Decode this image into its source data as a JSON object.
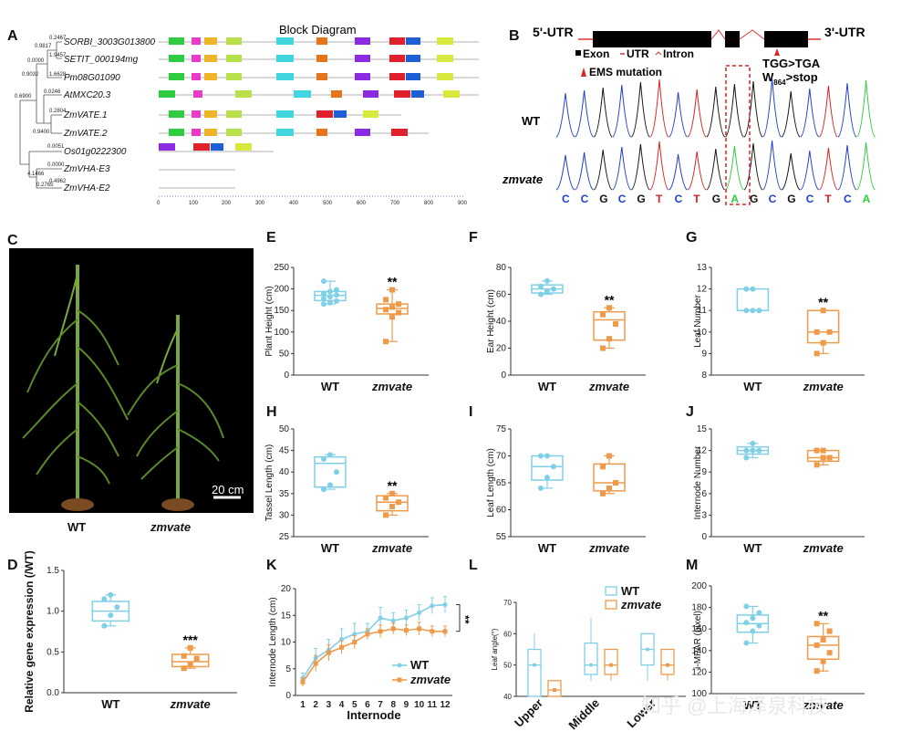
{
  "colors": {
    "wt": "#7fd0e6",
    "mut": "#ef9a4a",
    "dark": "#111111"
  },
  "panelA": {
    "letter": "A",
    "title": "Block Diagram",
    "genes": [
      "SORBI_3003G013800",
      "SETIT_000194mg",
      "Pm08G01090",
      "AtMXC20.3",
      "ZmVATE.1",
      "ZmVATE.2",
      "Os01g0222300",
      "ZmVHA-E3",
      "ZmVHA-E2"
    ],
    "branch_labels": [
      "0.2467",
      "0.9817",
      "0.0000",
      "1.9457",
      "1.6628",
      "0.9032",
      "0.6900",
      "0.0246",
      "0.2804",
      "0.9400",
      "0.0051",
      "0.0000",
      "4.1466",
      "0.2765",
      "0.4962"
    ],
    "scale": [
      "0",
      "100",
      "200",
      "300",
      "400",
      "500",
      "600",
      "700",
      "800",
      "900"
    ]
  },
  "panelB": {
    "letter": "B",
    "utr5": "5'-UTR",
    "utr3": "3'-UTR",
    "legend_exon": "Exon",
    "legend_utr": "UTR",
    "legend_intron": "Intron",
    "ems": "EMS mutation",
    "mut1": "TGG>TGA",
    "mut2_w": "W",
    "mut2_sub": "864",
    "mut2_rest": ">stop",
    "wt": "WT",
    "mutant": "zmvate",
    "bases": [
      "C",
      "C",
      "G",
      "C",
      "G",
      "T",
      "C",
      "T",
      "G",
      "A",
      "G",
      "C",
      "G",
      "C",
      "T",
      "C",
      "A"
    ]
  },
  "panelC": {
    "letter": "C",
    "scale": "20 cm",
    "wt": "WT",
    "mutant": "zmvate"
  },
  "panels": [
    {
      "letter": "E",
      "ylabel": "Plant Height (cm)",
      "ylim": [
        0,
        250
      ],
      "ticks": [
        0,
        50,
        100,
        150,
        200,
        250
      ],
      "sig": "**",
      "wt": {
        "min": 165,
        "q1": 173,
        "med": 185,
        "q3": 194,
        "max": 218,
        "pts": [
          165,
          168,
          172,
          178,
          182,
          186,
          190,
          194,
          198,
          218
        ]
      },
      "mut": {
        "min": 78,
        "q1": 142,
        "med": 155,
        "q3": 165,
        "max": 198,
        "pts": [
          78,
          135,
          145,
          152,
          158,
          165,
          175,
          198
        ]
      }
    },
    {
      "letter": "F",
      "ylabel": "Ear Height (cm)",
      "ylim": [
        0,
        80
      ],
      "ticks": [
        0,
        20,
        40,
        60,
        80
      ],
      "sig": "**",
      "wt": {
        "min": 60,
        "q1": 61,
        "med": 64,
        "q3": 67,
        "max": 70,
        "pts": [
          60,
          62,
          64,
          66,
          70
        ]
      },
      "mut": {
        "min": 20,
        "q1": 26,
        "med": 41,
        "q3": 47,
        "max": 50,
        "pts": [
          20,
          27,
          38,
          45,
          50
        ]
      }
    },
    {
      "letter": "G",
      "ylabel": "Leaf Number",
      "ylim": [
        8,
        13
      ],
      "ticks": [
        8,
        9,
        10,
        11,
        12,
        13
      ],
      "sig": "**",
      "wt": {
        "min": 11,
        "q1": 11,
        "med": 11,
        "q3": 12,
        "max": 12,
        "pts": [
          11,
          11,
          11,
          12,
          12
        ]
      },
      "mut": {
        "min": 9,
        "q1": 9.5,
        "med": 10,
        "q3": 11,
        "max": 11,
        "pts": [
          9,
          9.5,
          10,
          10,
          11
        ]
      }
    },
    {
      "letter": "H",
      "ylabel": "Tassel Length (cm)",
      "ylim": [
        25,
        50
      ],
      "ticks": [
        25,
        30,
        35,
        40,
        45,
        50
      ],
      "sig": "**",
      "wt": {
        "min": 36,
        "q1": 36.5,
        "med": 42,
        "q3": 43.5,
        "max": 44,
        "pts": [
          36,
          37,
          40,
          43,
          44
        ]
      },
      "mut": {
        "min": 30,
        "q1": 31,
        "med": 33,
        "q3": 34.5,
        "max": 35,
        "pts": [
          30,
          32,
          33,
          34,
          35
        ]
      }
    },
    {
      "letter": "I",
      "ylabel": "Leaf Length (cm)",
      "ylim": [
        55,
        75
      ],
      "ticks": [
        55,
        60,
        65,
        70,
        75
      ],
      "sig": "",
      "wt": {
        "min": 64,
        "q1": 65.5,
        "med": 68,
        "q3": 70,
        "max": 70,
        "pts": [
          64,
          66,
          68,
          70,
          70
        ]
      },
      "mut": {
        "min": 63,
        "q1": 63.5,
        "med": 65,
        "q3": 68.5,
        "max": 70,
        "pts": [
          63,
          64,
          65,
          68,
          70
        ]
      }
    },
    {
      "letter": "J",
      "ylabel": "Internode Number",
      "ylim": [
        0,
        15
      ],
      "ticks": [
        0,
        3,
        6,
        9,
        12,
        15
      ],
      "sig": "",
      "wt": {
        "min": 11,
        "q1": 11.5,
        "med": 12,
        "q3": 12.5,
        "max": 13,
        "pts": [
          11,
          12,
          12,
          12,
          13
        ]
      },
      "mut": {
        "min": 10,
        "q1": 10.5,
        "med": 11,
        "q3": 12,
        "max": 12,
        "pts": [
          10,
          11,
          11,
          12,
          12
        ]
      }
    },
    {
      "letter": "D",
      "ylabel": "Relative gene expression (/WT)",
      "ylim": [
        0,
        1.5
      ],
      "ticks": [
        0.0,
        0.5,
        1.0,
        1.5
      ],
      "sig": "***",
      "wt": {
        "min": 0.82,
        "q1": 0.88,
        "med": 1.0,
        "q3": 1.12,
        "max": 1.2,
        "pts": [
          0.82,
          0.95,
          1.05,
          1.15,
          1.2
        ]
      },
      "mut": {
        "min": 0.3,
        "q1": 0.32,
        "med": 0.38,
        "q3": 0.47,
        "max": 0.55,
        "pts": [
          0.3,
          0.35,
          0.42,
          0.45,
          0.55
        ]
      }
    },
    {
      "letter": "M",
      "ylabel": "i-MPAR (pixel)",
      "ylim": [
        100,
        200
      ],
      "ticks": [
        100,
        120,
        140,
        160,
        180,
        200
      ],
      "sig": "**",
      "wt": {
        "min": 147,
        "q1": 157,
        "med": 165,
        "q3": 173,
        "max": 181,
        "pts": [
          147,
          158,
          163,
          166,
          170,
          175,
          181
        ]
      },
      "mut": {
        "min": 121,
        "q1": 132,
        "med": 145,
        "q3": 153,
        "max": 165,
        "pts": [
          121,
          130,
          138,
          145,
          150,
          158,
          165
        ]
      }
    }
  ],
  "group_labels": {
    "wt": "WT",
    "mut": "zmvate"
  },
  "chart_data": [
    {
      "type": "line",
      "letter": "K",
      "title": "",
      "xlabel": "Internode",
      "ylabel": "Internode Length (cm)",
      "x": [
        1,
        2,
        3,
        4,
        5,
        6,
        7,
        8,
        9,
        10,
        11,
        12
      ],
      "ylim": [
        0,
        20
      ],
      "yticks": [
        0,
        5,
        10,
        15,
        20
      ],
      "sig": "**",
      "series": [
        {
          "name": "WT",
          "values": [
            3.2,
            7.0,
            8.5,
            10.5,
            11.5,
            12.0,
            14.5,
            14.0,
            14.5,
            15.5,
            16.8,
            17.0
          ],
          "err": [
            1.0,
            1.8,
            2.0,
            2.0,
            2.0,
            1.5,
            2.0,
            1.5,
            1.5,
            1.5,
            1.5,
            1.5
          ]
        },
        {
          "name": "zmvate",
          "values": [
            2.5,
            6.0,
            8.0,
            9.0,
            10.0,
            11.5,
            12.0,
            12.5,
            12.2,
            12.5,
            12.0,
            12.0
          ],
          "err": [
            0.8,
            1.5,
            1.5,
            1.2,
            1.2,
            1.0,
            1.2,
            1.0,
            1.0,
            1.2,
            1.0,
            1.0
          ]
        }
      ]
    },
    {
      "type": "box",
      "letter": "L",
      "ylabel": "Leaf angle(°)",
      "ylim": [
        40,
        70
      ],
      "yticks": [
        40,
        50,
        60,
        70
      ],
      "categories": [
        "Upper",
        "Middle",
        "Lower"
      ],
      "series": [
        {
          "name": "WT",
          "boxes": [
            {
              "min": 40,
              "q1": 40,
              "med": 50,
              "q3": 55,
              "max": 60
            },
            {
              "min": 45,
              "q1": 47,
              "med": 50,
              "q3": 57,
              "max": 65
            },
            {
              "min": 45,
              "q1": 50,
              "med": 55,
              "q3": 60,
              "max": 60
            }
          ]
        },
        {
          "name": "zmvate",
          "boxes": [
            {
              "min": 40,
              "q1": 40,
              "med": 42,
              "q3": 45,
              "max": 45
            },
            {
              "min": 45,
              "q1": 47,
              "med": 50,
              "q3": 55,
              "max": 55
            },
            {
              "min": 45,
              "q1": 47,
              "med": 50,
              "q3": 55,
              "max": 55
            }
          ]
        }
      ],
      "legend": [
        "WT",
        "zmvate"
      ]
    }
  ],
  "watermark": "知乎 @上海泽泉科技"
}
